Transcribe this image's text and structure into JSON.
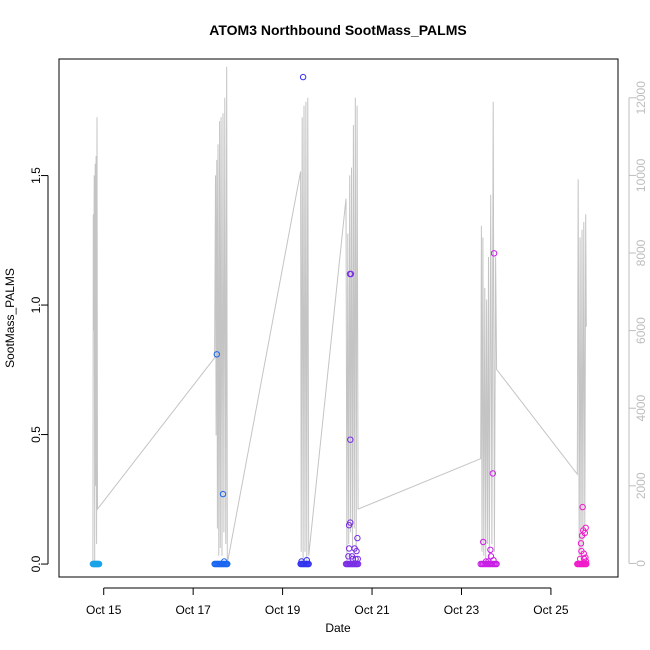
{
  "chart_data": {
    "type": "scatter",
    "title": "ATOM3 Northbound SootMass_PALMS",
    "xlabel": "Date",
    "ylabel": "SootMass_PALMS",
    "x_axis": {
      "type": "date",
      "range": [
        "2016-10-14T00:00",
        "2016-10-26T12:00"
      ],
      "ticks": [
        {
          "date": "2016-10-15T00:00",
          "label": "Oct 15"
        },
        {
          "date": "2016-10-17T00:00",
          "label": "Oct 17"
        },
        {
          "date": "2016-10-19T00:00",
          "label": "Oct 19"
        },
        {
          "date": "2016-10-21T00:00",
          "label": "Oct 21"
        },
        {
          "date": "2016-10-23T00:00",
          "label": "Oct 23"
        },
        {
          "date": "2016-10-25T00:00",
          "label": "Oct 25"
        }
      ]
    },
    "y_axis": {
      "range": [
        -0.05,
        1.95
      ],
      "ticks": [
        {
          "value": 0.0,
          "label": "0.0"
        },
        {
          "value": 0.5,
          "label": "0.5"
        },
        {
          "value": 1.0,
          "label": "1.0"
        },
        {
          "value": 1.5,
          "label": "1.5"
        }
      ]
    },
    "y2_axis": {
      "range": [
        -350,
        13000
      ],
      "color": "#bdbdbd",
      "ticks": [
        {
          "value": 0,
          "label": "0"
        },
        {
          "value": 2000,
          "label": "2000"
        },
        {
          "value": 4000,
          "label": "4000"
        },
        {
          "value": 6000,
          "label": "6000"
        },
        {
          "value": 8000,
          "label": "8000"
        },
        {
          "value": 10000,
          "label": "10000"
        },
        {
          "value": 12000,
          "label": "12000"
        }
      ]
    },
    "grid": false,
    "legend": "none",
    "marker": "open-circle",
    "altitude_line_color": "#c4c4c4",
    "altitude_line": [
      [
        "2016-10-14T18:10",
        0
      ],
      [
        "2016-10-14T18:25",
        9000
      ],
      [
        "2016-10-14T18:40",
        6000
      ],
      [
        "2016-10-14T18:55",
        10000
      ],
      [
        "2016-10-14T19:10",
        0
      ],
      [
        "2016-10-14T19:25",
        10300
      ],
      [
        "2016-10-14T19:40",
        2000
      ],
      [
        "2016-10-14T19:55",
        10500
      ],
      [
        "2016-10-14T20:10",
        500
      ],
      [
        "2016-10-14T20:25",
        11500
      ],
      [
        "2016-10-14T20:40",
        1400
      ],
      [
        "2016-10-17T11:30",
        5300
      ],
      [
        "2016-10-17T12:00",
        10000
      ],
      [
        "2016-10-17T12:20",
        3300
      ],
      [
        "2016-10-17T12:40",
        10400
      ],
      [
        "2016-10-17T13:00",
        900
      ],
      [
        "2016-10-17T13:20",
        10800
      ],
      [
        "2016-10-17T13:45",
        200
      ],
      [
        "2016-10-17T14:10",
        11400
      ],
      [
        "2016-10-17T14:35",
        400
      ],
      [
        "2016-10-17T15:00",
        11500
      ],
      [
        "2016-10-17T15:30",
        200
      ],
      [
        "2016-10-17T16:00",
        11600
      ],
      [
        "2016-10-17T16:30",
        800
      ],
      [
        "2016-10-17T17:00",
        12000
      ],
      [
        "2016-10-17T17:30",
        500
      ],
      [
        "2016-10-17T18:00",
        12800
      ],
      [
        "2016-10-17T18:20",
        0
      ],
      [
        "2016-10-19T09:40",
        10100
      ],
      [
        "2016-10-19T10:00",
        300
      ],
      [
        "2016-10-19T10:30",
        11500
      ],
      [
        "2016-10-19T11:00",
        0
      ],
      [
        "2016-10-19T11:30",
        11800
      ],
      [
        "2016-10-19T12:00",
        300
      ],
      [
        "2016-10-19T12:30",
        11900
      ],
      [
        "2016-10-19T13:00",
        0
      ],
      [
        "2016-10-19T13:30",
        12000
      ],
      [
        "2016-10-19T14:00",
        200
      ],
      [
        "2016-10-20T10:00",
        9400
      ],
      [
        "2016-10-20T10:30",
        0
      ],
      [
        "2016-10-20T11:00",
        8500
      ],
      [
        "2016-10-20T11:30",
        500
      ],
      [
        "2016-10-20T12:00",
        10000
      ],
      [
        "2016-10-20T12:30",
        800
      ],
      [
        "2016-10-20T13:00",
        10200
      ],
      [
        "2016-10-20T13:30",
        400
      ],
      [
        "2016-10-20T14:00",
        11300
      ],
      [
        "2016-10-20T14:30",
        900
      ],
      [
        "2016-10-20T15:00",
        12000
      ],
      [
        "2016-10-20T15:30",
        300
      ],
      [
        "2016-10-20T16:00",
        11800
      ],
      [
        "2016-10-20T16:30",
        1400
      ],
      [
        "2016-10-23T10:20",
        2700
      ],
      [
        "2016-10-23T10:40",
        8700
      ],
      [
        "2016-10-23T11:00",
        300
      ],
      [
        "2016-10-23T11:30",
        8400
      ],
      [
        "2016-10-23T12:00",
        200
      ],
      [
        "2016-10-23T12:30",
        7100
      ],
      [
        "2016-10-23T13:00",
        100
      ],
      [
        "2016-10-23T13:30",
        6800
      ],
      [
        "2016-10-23T14:00",
        500
      ],
      [
        "2016-10-23T14:30",
        7900
      ],
      [
        "2016-10-23T15:00",
        100
      ],
      [
        "2016-10-23T15:40",
        9500
      ],
      [
        "2016-10-23T16:20",
        500
      ],
      [
        "2016-10-23T17:00",
        11900
      ],
      [
        "2016-10-23T17:40",
        300
      ],
      [
        "2016-10-23T18:20",
        7900
      ],
      [
        "2016-10-23T18:50",
        5000
      ],
      [
        "2016-10-25T14:10",
        2300
      ],
      [
        "2016-10-25T14:40",
        9900
      ],
      [
        "2016-10-25T15:10",
        200
      ],
      [
        "2016-10-25T15:40",
        8400
      ],
      [
        "2016-10-25T16:10",
        100
      ],
      [
        "2016-10-25T16:40",
        8600
      ],
      [
        "2016-10-25T17:10",
        400
      ],
      [
        "2016-10-25T17:40",
        8800
      ],
      [
        "2016-10-25T18:10",
        900
      ],
      [
        "2016-10-25T18:40",
        9000
      ],
      [
        "2016-10-25T19:00",
        6100
      ]
    ],
    "series": [
      {
        "color": "#1aa3e8",
        "points": [
          [
            "2016-10-14T18:10",
            0
          ],
          [
            "2016-10-14T18:30",
            0
          ],
          [
            "2016-10-14T18:50",
            0
          ],
          [
            "2016-10-14T19:10",
            0
          ],
          [
            "2016-10-14T19:30",
            0
          ],
          [
            "2016-10-14T19:50",
            0
          ],
          [
            "2016-10-14T20:10",
            0
          ],
          [
            "2016-10-14T20:30",
            0
          ],
          [
            "2016-10-14T20:50",
            0
          ],
          [
            "2016-10-14T21:10",
            0
          ],
          [
            "2016-10-14T21:30",
            0
          ]
        ]
      },
      {
        "color": "#1a66f0",
        "points": [
          [
            "2016-10-17T11:30",
            0
          ],
          [
            "2016-10-17T12:00",
            0
          ],
          [
            "2016-10-17T12:30",
            0
          ],
          [
            "2016-10-17T13:00",
            0
          ],
          [
            "2016-10-17T13:30",
            0
          ],
          [
            "2016-10-17T14:00",
            0
          ],
          [
            "2016-10-17T14:30",
            0
          ],
          [
            "2016-10-17T15:00",
            0
          ],
          [
            "2016-10-17T15:30",
            0
          ],
          [
            "2016-10-17T16:00",
            0
          ],
          [
            "2016-10-17T16:30",
            0
          ],
          [
            "2016-10-17T17:00",
            0
          ],
          [
            "2016-10-17T17:30",
            0
          ],
          [
            "2016-10-17T18:00",
            0
          ],
          [
            "2016-10-17T18:20",
            0
          ],
          [
            "2016-10-17T12:40",
            0.81
          ],
          [
            "2016-10-17T16:00",
            0.27
          ],
          [
            "2016-10-17T16:40",
            0.01
          ]
        ]
      },
      {
        "color": "#3333ee",
        "points": [
          [
            "2016-10-19T09:40",
            0
          ],
          [
            "2016-10-19T10:10",
            0
          ],
          [
            "2016-10-19T10:40",
            0
          ],
          [
            "2016-10-19T11:10",
            0
          ],
          [
            "2016-10-19T11:40",
            0
          ],
          [
            "2016-10-19T12:10",
            0
          ],
          [
            "2016-10-19T12:40",
            0
          ],
          [
            "2016-10-19T13:10",
            0
          ],
          [
            "2016-10-19T13:40",
            0
          ],
          [
            "2016-10-19T14:00",
            0
          ],
          [
            "2016-10-19T11:00",
            1.88
          ],
          [
            "2016-10-19T10:10",
            0.01
          ],
          [
            "2016-10-19T13:00",
            0.015
          ]
        ]
      },
      {
        "color": "#7a2ee6",
        "points": [
          [
            "2016-10-20T10:00",
            0
          ],
          [
            "2016-10-20T10:30",
            0
          ],
          [
            "2016-10-20T11:00",
            0
          ],
          [
            "2016-10-20T11:30",
            0
          ],
          [
            "2016-10-20T12:00",
            0
          ],
          [
            "2016-10-20T12:30",
            0
          ],
          [
            "2016-10-20T13:00",
            0
          ],
          [
            "2016-10-20T13:30",
            0
          ],
          [
            "2016-10-20T14:00",
            0
          ],
          [
            "2016-10-20T14:30",
            0
          ],
          [
            "2016-10-20T15:00",
            0
          ],
          [
            "2016-10-20T15:30",
            0
          ],
          [
            "2016-10-20T16:00",
            0
          ],
          [
            "2016-10-20T16:30",
            0
          ],
          [
            "2016-10-20T12:10",
            1.12
          ],
          [
            "2016-10-20T12:40",
            1.12
          ],
          [
            "2016-10-20T12:20",
            0.48
          ],
          [
            "2016-10-20T11:40",
            0.15
          ],
          [
            "2016-10-20T12:20",
            0.16
          ],
          [
            "2016-10-20T16:10",
            0.1
          ],
          [
            "2016-10-20T11:40",
            0.06
          ],
          [
            "2016-10-20T14:40",
            0.06
          ],
          [
            "2016-10-20T15:40",
            0.05
          ],
          [
            "2016-10-20T11:20",
            0.03
          ],
          [
            "2016-10-20T13:10",
            0.03
          ],
          [
            "2016-10-20T13:40",
            0.02
          ],
          [
            "2016-10-20T15:10",
            0.02
          ],
          [
            "2016-10-20T16:20",
            0.02
          ]
        ]
      },
      {
        "color": "#c81ee6",
        "points": [
          [
            "2016-10-23T10:20",
            0
          ],
          [
            "2016-10-23T11:00",
            0
          ],
          [
            "2016-10-23T11:40",
            0
          ],
          [
            "2016-10-23T12:20",
            0
          ],
          [
            "2016-10-23T13:00",
            0
          ],
          [
            "2016-10-23T13:40",
            0
          ],
          [
            "2016-10-23T14:20",
            0
          ],
          [
            "2016-10-23T15:00",
            0
          ],
          [
            "2016-10-23T15:40",
            0
          ],
          [
            "2016-10-23T16:20",
            0
          ],
          [
            "2016-10-23T17:00",
            0
          ],
          [
            "2016-10-23T17:40",
            0
          ],
          [
            "2016-10-23T18:20",
            0
          ],
          [
            "2016-10-23T18:50",
            0
          ],
          [
            "2016-10-23T17:30",
            1.2
          ],
          [
            "2016-10-23T16:50",
            0.35
          ],
          [
            "2016-10-23T11:40",
            0.085
          ],
          [
            "2016-10-23T15:30",
            0.055
          ],
          [
            "2016-10-23T15:50",
            0.03
          ],
          [
            "2016-10-23T13:10",
            0.01
          ],
          [
            "2016-10-23T14:30",
            0.01
          ],
          [
            "2016-10-23T17:10",
            0.015
          ]
        ]
      },
      {
        "color": "#f01aca",
        "points": [
          [
            "2016-10-25T14:10",
            0
          ],
          [
            "2016-10-25T14:40",
            0
          ],
          [
            "2016-10-25T15:10",
            0
          ],
          [
            "2016-10-25T15:40",
            0
          ],
          [
            "2016-10-25T16:10",
            0
          ],
          [
            "2016-10-25T16:40",
            0
          ],
          [
            "2016-10-25T17:10",
            0
          ],
          [
            "2016-10-25T17:40",
            0
          ],
          [
            "2016-10-25T18:10",
            0
          ],
          [
            "2016-10-25T18:40",
            0
          ],
          [
            "2016-10-25T19:00",
            0
          ],
          [
            "2016-10-25T17:00",
            0.22
          ],
          [
            "2016-10-25T18:40",
            0.14
          ],
          [
            "2016-10-25T17:20",
            0.13
          ],
          [
            "2016-10-25T16:40",
            0.11
          ],
          [
            "2016-10-25T18:10",
            0.12
          ],
          [
            "2016-10-25T16:10",
            0.08
          ],
          [
            "2016-10-25T16:20",
            0.05
          ],
          [
            "2016-10-25T17:40",
            0.04
          ],
          [
            "2016-10-25T18:30",
            0.025
          ],
          [
            "2016-10-25T15:40",
            0.02
          ],
          [
            "2016-10-25T17:50",
            0.02
          ],
          [
            "2016-10-25T18:50",
            0.01
          ]
        ]
      }
    ]
  }
}
